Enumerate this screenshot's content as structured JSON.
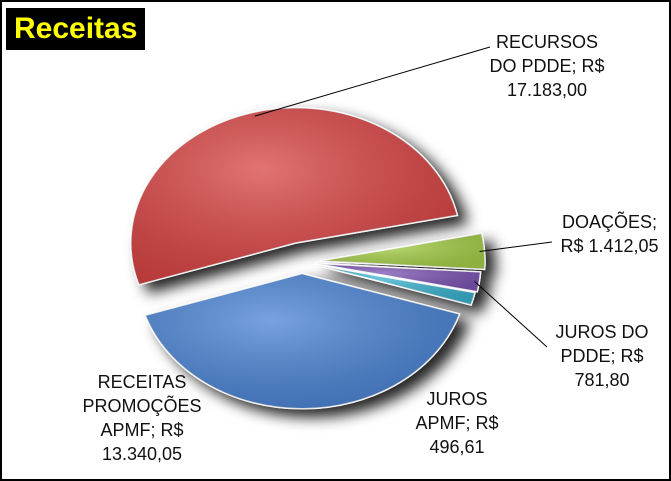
{
  "chart_data": {
    "type": "pie",
    "title": "Receitas",
    "categories": [
      "RECURSOS DO PDDE",
      "DOAÇÕES",
      "JUROS DO PDDE",
      "JUROS APMF",
      "RECEITAS PROMOÇÕES APMF"
    ],
    "values": [
      17183.0,
      1412.05,
      781.8,
      496.61,
      13340.05
    ],
    "value_labels": [
      "R$ 17.183,00",
      "R$ 1.412,05",
      "R$ 781,80",
      "R$ 496,61",
      "R$ 13.340,05"
    ],
    "separator": ";",
    "colors": [
      "#d94444",
      "#a6cf4a",
      "#7b55b4",
      "#3bb3cf",
      "#4b84d4"
    ]
  }
}
